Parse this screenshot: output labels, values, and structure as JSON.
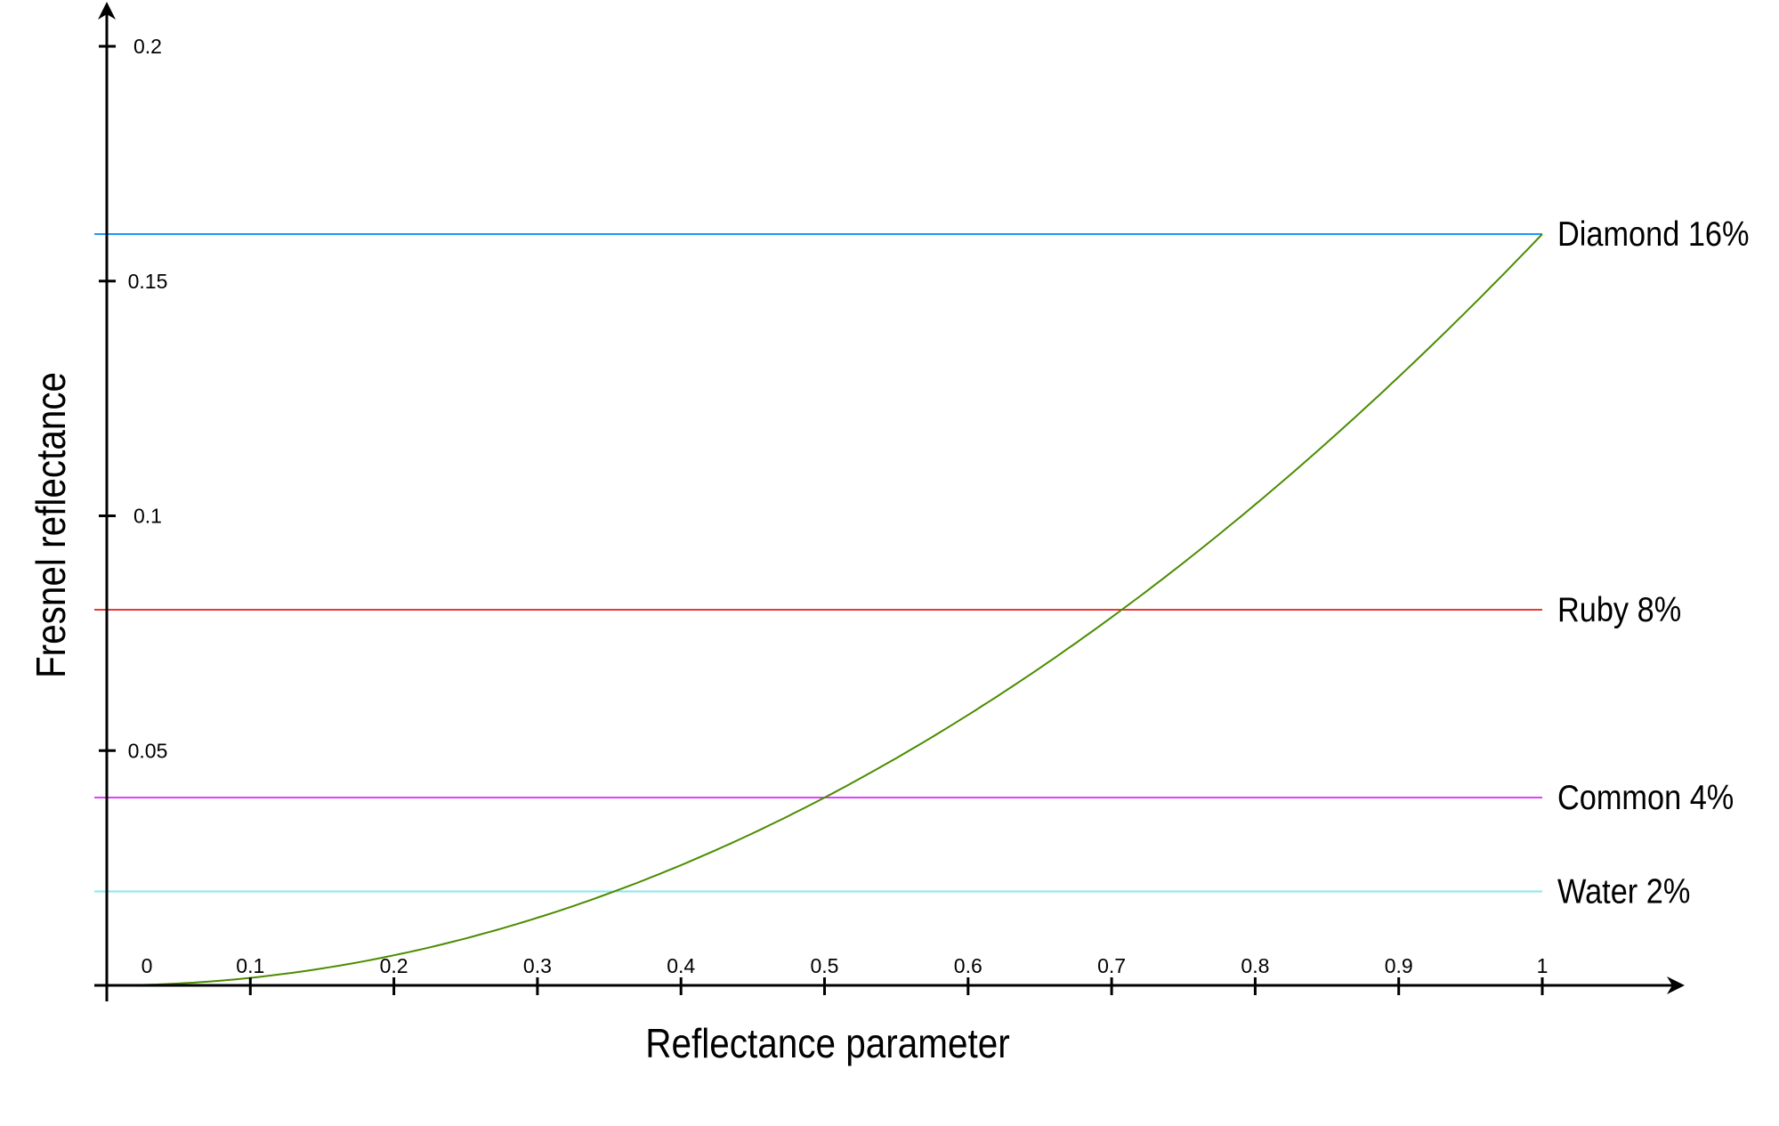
{
  "chart_data": {
    "type": "line",
    "title": "",
    "xlabel": "Reflectance parameter",
    "ylabel": "Fresnel reflectance",
    "xlim": [
      0,
      1
    ],
    "ylim": [
      0,
      0.2
    ],
    "grid": false,
    "xticks": [
      "0",
      "0.1",
      "0.2",
      "0.3",
      "0.4",
      "0.5",
      "0.6",
      "0.7",
      "0.8",
      "0.9",
      "1"
    ],
    "yticks": [
      "0.05",
      "0.1",
      "0.15",
      "0.2"
    ],
    "curve": {
      "formula": "0.16*x^2",
      "color": "#4a8c00",
      "x": [
        0,
        0.1,
        0.2,
        0.3,
        0.4,
        0.5,
        0.6,
        0.7,
        0.8,
        0.9,
        1
      ],
      "y": [
        0,
        0.0016,
        0.0064,
        0.0144,
        0.0256,
        0.04,
        0.0576,
        0.0784,
        0.1024,
        0.1296,
        0.16
      ]
    },
    "reference_lines": [
      {
        "label": "Diamond 16%",
        "value": 0.16,
        "color": "#2196f3"
      },
      {
        "label": "Ruby 8%",
        "value": 0.08,
        "color": "#e53935"
      },
      {
        "label": "Common 4%",
        "value": 0.04,
        "color": "#e040fb"
      },
      {
        "label": "Water 2%",
        "value": 0.02,
        "color": "#84e8f0"
      }
    ]
  }
}
